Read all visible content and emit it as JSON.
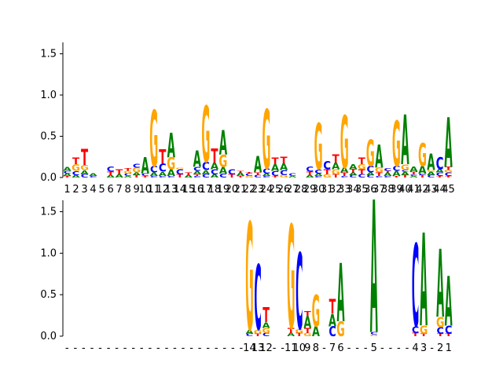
{
  "colors": {
    "A": "#008000",
    "C": "#0000ff",
    "G": "#ffa500",
    "T": "#ff0000"
  },
  "chart_data": [
    {
      "type": "sequence-logo",
      "ylim": [
        0,
        1.6
      ],
      "yticks": [
        0.0,
        0.5,
        1.0,
        1.5
      ],
      "ytick_labels": [
        "0.0",
        "0.5",
        "1.0",
        "1.5"
      ],
      "xtick_labels": [
        "1",
        "2",
        "3",
        "4",
        "5",
        "6",
        "7",
        "8",
        "9",
        "10",
        "11",
        "12",
        "13",
        "14",
        "15",
        "16",
        "17",
        "18",
        "19",
        "20",
        "21",
        "22",
        "23",
        "24",
        "25",
        "26",
        "27",
        "28",
        "29",
        "30",
        "31",
        "32",
        "33",
        "34",
        "35",
        "36",
        "37",
        "38",
        "39",
        "40",
        "41",
        "42",
        "43",
        "44",
        "45"
      ],
      "positions": [
        [
          [
            "T",
            0.02
          ],
          [
            "A",
            0.03
          ],
          [
            "C",
            0.03
          ],
          [
            "A",
            0.05
          ]
        ],
        [
          [
            "A",
            0.03
          ],
          [
            "C",
            0.05
          ],
          [
            "G",
            0.08
          ],
          [
            "T",
            0.08
          ]
        ],
        [
          [
            "C",
            0.04
          ],
          [
            "A",
            0.05
          ],
          [
            "G",
            0.06
          ],
          [
            "T",
            0.2
          ]
        ],
        [
          [
            "C",
            0.02
          ],
          [
            "A",
            0.03
          ]
        ],
        [],
        [
          [
            "A",
            0.03
          ],
          [
            "T",
            0.04
          ],
          [
            "C",
            0.06
          ]
        ],
        [
          [
            "A",
            0.04
          ],
          [
            "T",
            0.06
          ]
        ],
        [
          [
            "A",
            0.02
          ],
          [
            "C",
            0.03
          ],
          [
            "G",
            0.03
          ],
          [
            "T",
            0.03
          ]
        ],
        [
          [
            "T",
            0.03
          ],
          [
            "A",
            0.03
          ],
          [
            "G",
            0.06
          ],
          [
            "C",
            0.05
          ]
        ],
        [
          [
            "T",
            0.02
          ],
          [
            "C",
            0.03
          ],
          [
            "A",
            0.2
          ]
        ],
        [
          [
            "C",
            0.02
          ],
          [
            "A",
            0.04
          ],
          [
            "C",
            0.08
          ],
          [
            "G",
            0.68
          ]
        ],
        [
          [
            "C",
            0.02
          ],
          [
            "A",
            0.05
          ],
          [
            "C",
            0.1
          ],
          [
            "T",
            0.17
          ]
        ],
        [
          [
            "C",
            0.02
          ],
          [
            "A",
            0.08
          ],
          [
            "G",
            0.15
          ],
          [
            "A",
            0.3
          ]
        ],
        [
          [
            "T",
            0.04
          ],
          [
            "C",
            0.06
          ],
          [
            "G",
            0.02
          ]
        ],
        [
          [
            "A",
            0.03
          ],
          [
            "T",
            0.03
          ]
        ],
        [
          [
            "C",
            0.02
          ],
          [
            "T",
            0.02
          ],
          [
            "A",
            0.04
          ],
          [
            "C",
            0.05
          ],
          [
            "A",
            0.2
          ]
        ],
        [
          [
            "C",
            0.04
          ],
          [
            "A",
            0.05
          ],
          [
            "C",
            0.1
          ],
          [
            "G",
            0.68
          ]
        ],
        [
          [
            "A",
            0.04
          ],
          [
            "C",
            0.06
          ],
          [
            "A",
            0.08
          ],
          [
            "T",
            0.17
          ]
        ],
        [
          [
            "C",
            0.05
          ],
          [
            "A",
            0.08
          ],
          [
            "G",
            0.15
          ],
          [
            "A",
            0.3
          ]
        ],
        [
          [
            "T",
            0.04
          ],
          [
            "C",
            0.06
          ]
        ],
        [
          [
            "T",
            0.02
          ],
          [
            "A",
            0.04
          ],
          [
            "T",
            0.02
          ]
        ],
        [
          [
            "G",
            0.02
          ],
          [
            "C",
            0.03
          ],
          [
            "T",
            0.02
          ]
        ],
        [
          [
            "C",
            0.03
          ],
          [
            "T",
            0.03
          ],
          [
            "A",
            0.2
          ]
        ],
        [
          [
            "C",
            0.02
          ],
          [
            "A",
            0.03
          ],
          [
            "C",
            0.06
          ],
          [
            "G",
            0.72
          ]
        ],
        [
          [
            "T",
            0.02
          ],
          [
            "C",
            0.06
          ],
          [
            "A",
            0.08
          ],
          [
            "T",
            0.08
          ]
        ],
        [
          [
            "G",
            0.03
          ],
          [
            "C",
            0.06
          ],
          [
            "A",
            0.08
          ],
          [
            "T",
            0.08
          ]
        ],
        [
          [
            "A",
            0.02
          ],
          [
            "C",
            0.03
          ]
        ],
        [],
        [
          [
            "A",
            0.03
          ],
          [
            "T",
            0.04
          ],
          [
            "C",
            0.06
          ]
        ],
        [
          [
            "C",
            0.02
          ],
          [
            "A",
            0.03
          ],
          [
            "C",
            0.05
          ],
          [
            "G",
            0.56
          ]
        ],
        [
          [
            "G",
            0.04
          ],
          [
            "T",
            0.06
          ],
          [
            "C",
            0.1
          ]
        ],
        [
          [
            "T",
            0.04
          ],
          [
            "G",
            0.06
          ],
          [
            "A",
            0.08
          ],
          [
            "T",
            0.1
          ]
        ],
        [
          [
            "C",
            0.02
          ],
          [
            "T",
            0.04
          ],
          [
            "A",
            0.06
          ],
          [
            "G",
            0.64
          ]
        ],
        [
          [
            "C",
            0.03
          ],
          [
            "A",
            0.03
          ],
          [
            "T",
            0.04
          ],
          [
            "A",
            0.06
          ]
        ],
        [
          [
            "C",
            0.04
          ],
          [
            "T",
            0.06
          ],
          [
            "G",
            0.06
          ],
          [
            "T",
            0.08
          ]
        ],
        [
          [
            "C",
            0.03
          ],
          [
            "A",
            0.03
          ],
          [
            "C",
            0.08
          ],
          [
            "G",
            0.32
          ]
        ],
        [
          [
            "C",
            0.02
          ],
          [
            "T",
            0.04
          ],
          [
            "G",
            0.06
          ],
          [
            "A",
            0.28
          ]
        ],
        [
          [
            "C",
            0.02
          ],
          [
            "A",
            0.04
          ],
          [
            "T",
            0.02
          ],
          [
            "C",
            0.03
          ]
        ],
        [
          [
            "T",
            0.02
          ],
          [
            "A",
            0.06
          ],
          [
            "C",
            0.06
          ],
          [
            "G",
            0.55
          ]
        ],
        [
          [
            "T",
            0.03
          ],
          [
            "A",
            0.04
          ],
          [
            "C",
            0.02
          ],
          [
            "G",
            0.07
          ],
          [
            "A",
            0.6
          ]
        ],
        [
          [
            "A",
            0.02
          ],
          [
            "C",
            0.02
          ],
          [
            "T",
            0.03
          ],
          [
            "A",
            0.06
          ]
        ],
        [
          [
            "T",
            0.03
          ],
          [
            "C",
            0.02
          ],
          [
            "A",
            0.09
          ],
          [
            "G",
            0.28
          ]
        ],
        [
          [
            "C",
            0.03
          ],
          [
            "A",
            0.04
          ],
          [
            "G",
            0.02
          ],
          [
            "A",
            0.2
          ]
        ],
        [
          [
            "T",
            0.02
          ],
          [
            "C",
            0.04
          ],
          [
            "A",
            0.04
          ],
          [
            "C",
            0.15
          ]
        ],
        [
          [
            "T",
            0.02
          ],
          [
            "C",
            0.04
          ],
          [
            "G",
            0.03
          ],
          [
            "T",
            0.04
          ],
          [
            "A",
            0.6
          ]
        ]
      ]
    },
    {
      "type": "sequence-logo",
      "ylim": [
        0,
        1.6
      ],
      "yticks": [
        0.0,
        0.5,
        1.0,
        1.5
      ],
      "ytick_labels": [
        "0.0",
        "0.5",
        "1.0",
        "1.5"
      ],
      "xtick_labels": [
        "-",
        "-",
        "-",
        "-",
        "-",
        "-",
        "-",
        "-",
        "-",
        "-",
        "-",
        "-",
        "-",
        "-",
        "-",
        "-",
        "-",
        "-",
        "-",
        "-",
        "-",
        "-",
        "14",
        "13",
        "12",
        "-",
        "-",
        "11",
        "10",
        "9",
        "8",
        "-",
        "7",
        "6",
        "-",
        "-",
        "-",
        "5",
        "-",
        "-",
        "-",
        "-",
        "4",
        "3",
        "-",
        "2",
        "1"
      ],
      "positions": [
        [],
        [],
        [],
        [],
        [],
        [],
        [],
        [],
        [],
        [],
        [],
        [],
        [],
        [],
        [],
        [],
        [],
        [],
        [],
        [],
        [],
        [],
        [
          [
            "C",
            0.03
          ],
          [
            "A",
            0.05
          ],
          [
            "G",
            1.3
          ]
        ],
        [
          [
            "T",
            0.03
          ],
          [
            "G",
            0.05
          ],
          [
            "C",
            0.78
          ]
        ],
        [
          [
            "C",
            0.04
          ],
          [
            "G",
            0.06
          ],
          [
            "A",
            0.07
          ],
          [
            "T",
            0.18
          ]
        ],
        [],
        [],
        [
          [
            "A",
            0.04
          ],
          [
            "T",
            0.06
          ],
          [
            "G",
            1.25
          ]
        ],
        [
          [
            "T",
            0.04
          ],
          [
            "G",
            0.05
          ],
          [
            "C",
            0.92
          ]
        ],
        [
          [
            "G",
            0.04
          ],
          [
            "T",
            0.06
          ],
          [
            "A",
            0.14
          ],
          [
            "T",
            0.06
          ]
        ],
        [
          [
            "A",
            0.12
          ],
          [
            "G",
            0.38
          ]
        ],
        [],
        [
          [
            "C",
            0.12
          ],
          [
            "A",
            0.15
          ],
          [
            "T",
            0.18
          ]
        ],
        [
          [
            "G",
            0.18
          ],
          [
            "A",
            0.7
          ]
        ],
        [],
        [],
        [],
        [
          [
            "G",
            0.02
          ],
          [
            "C",
            0.03
          ],
          [
            "A",
            1.6
          ]
        ],
        [],
        [],
        [],
        [],
        [
          [
            "T",
            0.04
          ],
          [
            "C",
            0.08
          ],
          [
            "C",
            1.0
          ]
        ],
        [
          [
            "T",
            0.03
          ],
          [
            "G",
            0.1
          ],
          [
            "A",
            1.12
          ]
        ],
        [],
        [
          [
            "T",
            0.03
          ],
          [
            "C",
            0.08
          ],
          [
            "G",
            0.12
          ],
          [
            "A",
            0.82
          ]
        ],
        [
          [
            "T",
            0.03
          ],
          [
            "C",
            0.1
          ],
          [
            "A",
            0.6
          ]
        ]
      ]
    }
  ]
}
